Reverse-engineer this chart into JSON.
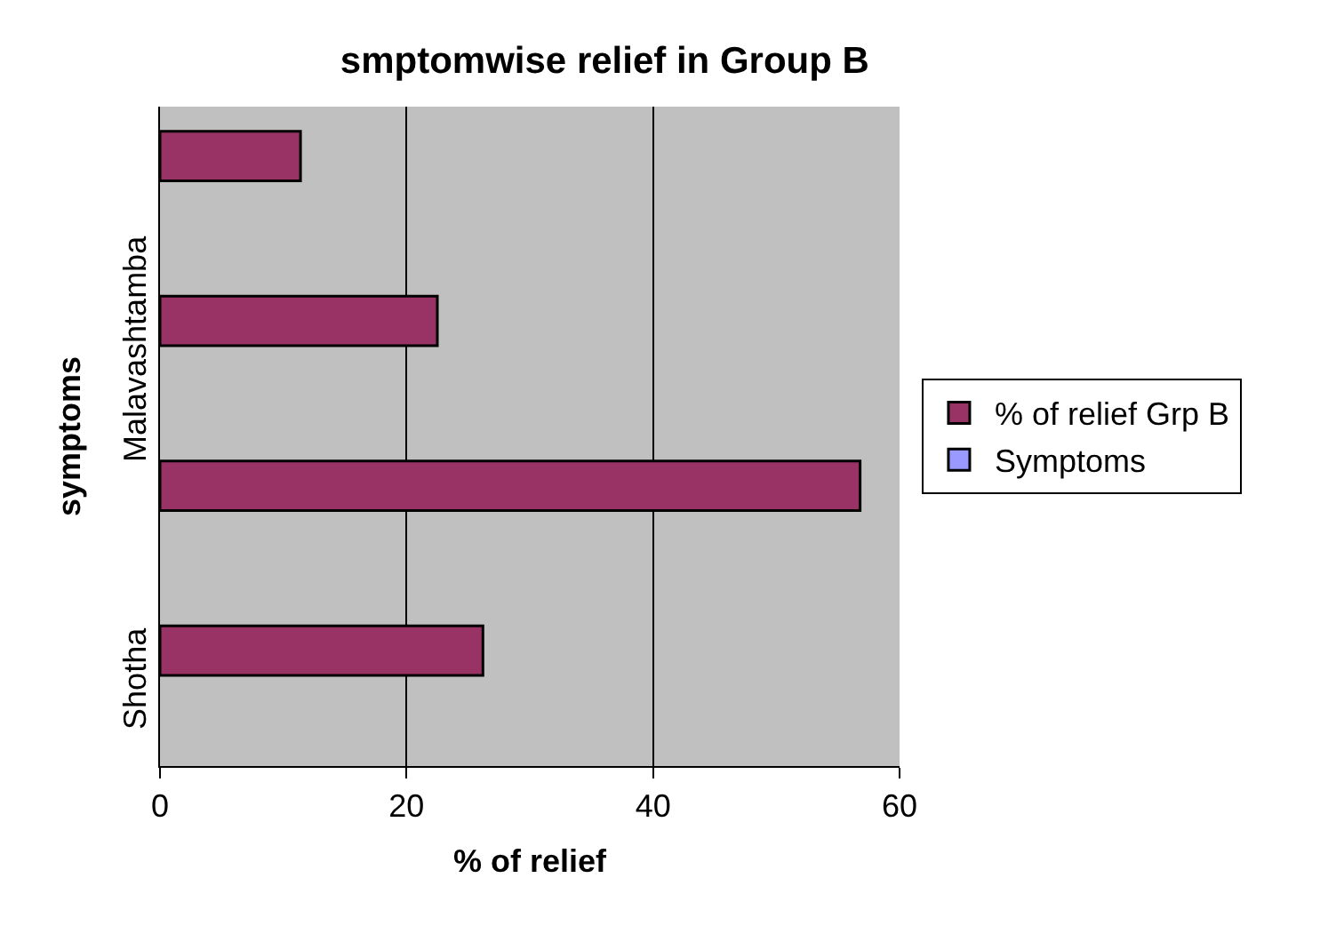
{
  "chart_data": {
    "type": "bar",
    "orientation": "horizontal",
    "title": "smptomwise relief in Group B",
    "xlabel": "% of relief",
    "ylabel": "symptoms",
    "categories": [
      null,
      "Malavashtamba",
      null,
      "Shotha"
    ],
    "series": [
      {
        "name": "% of relief Grp B",
        "color": "#993366",
        "values": [
          11.4,
          22.5,
          56.8,
          26.2
        ]
      },
      {
        "name": "Symptoms",
        "color": "#9999ff",
        "values": [
          null,
          null,
          null,
          null
        ]
      }
    ],
    "xlim": [
      0,
      60
    ],
    "xticks": [
      0,
      20,
      40,
      60
    ],
    "grid": "x",
    "legend": "right"
  }
}
